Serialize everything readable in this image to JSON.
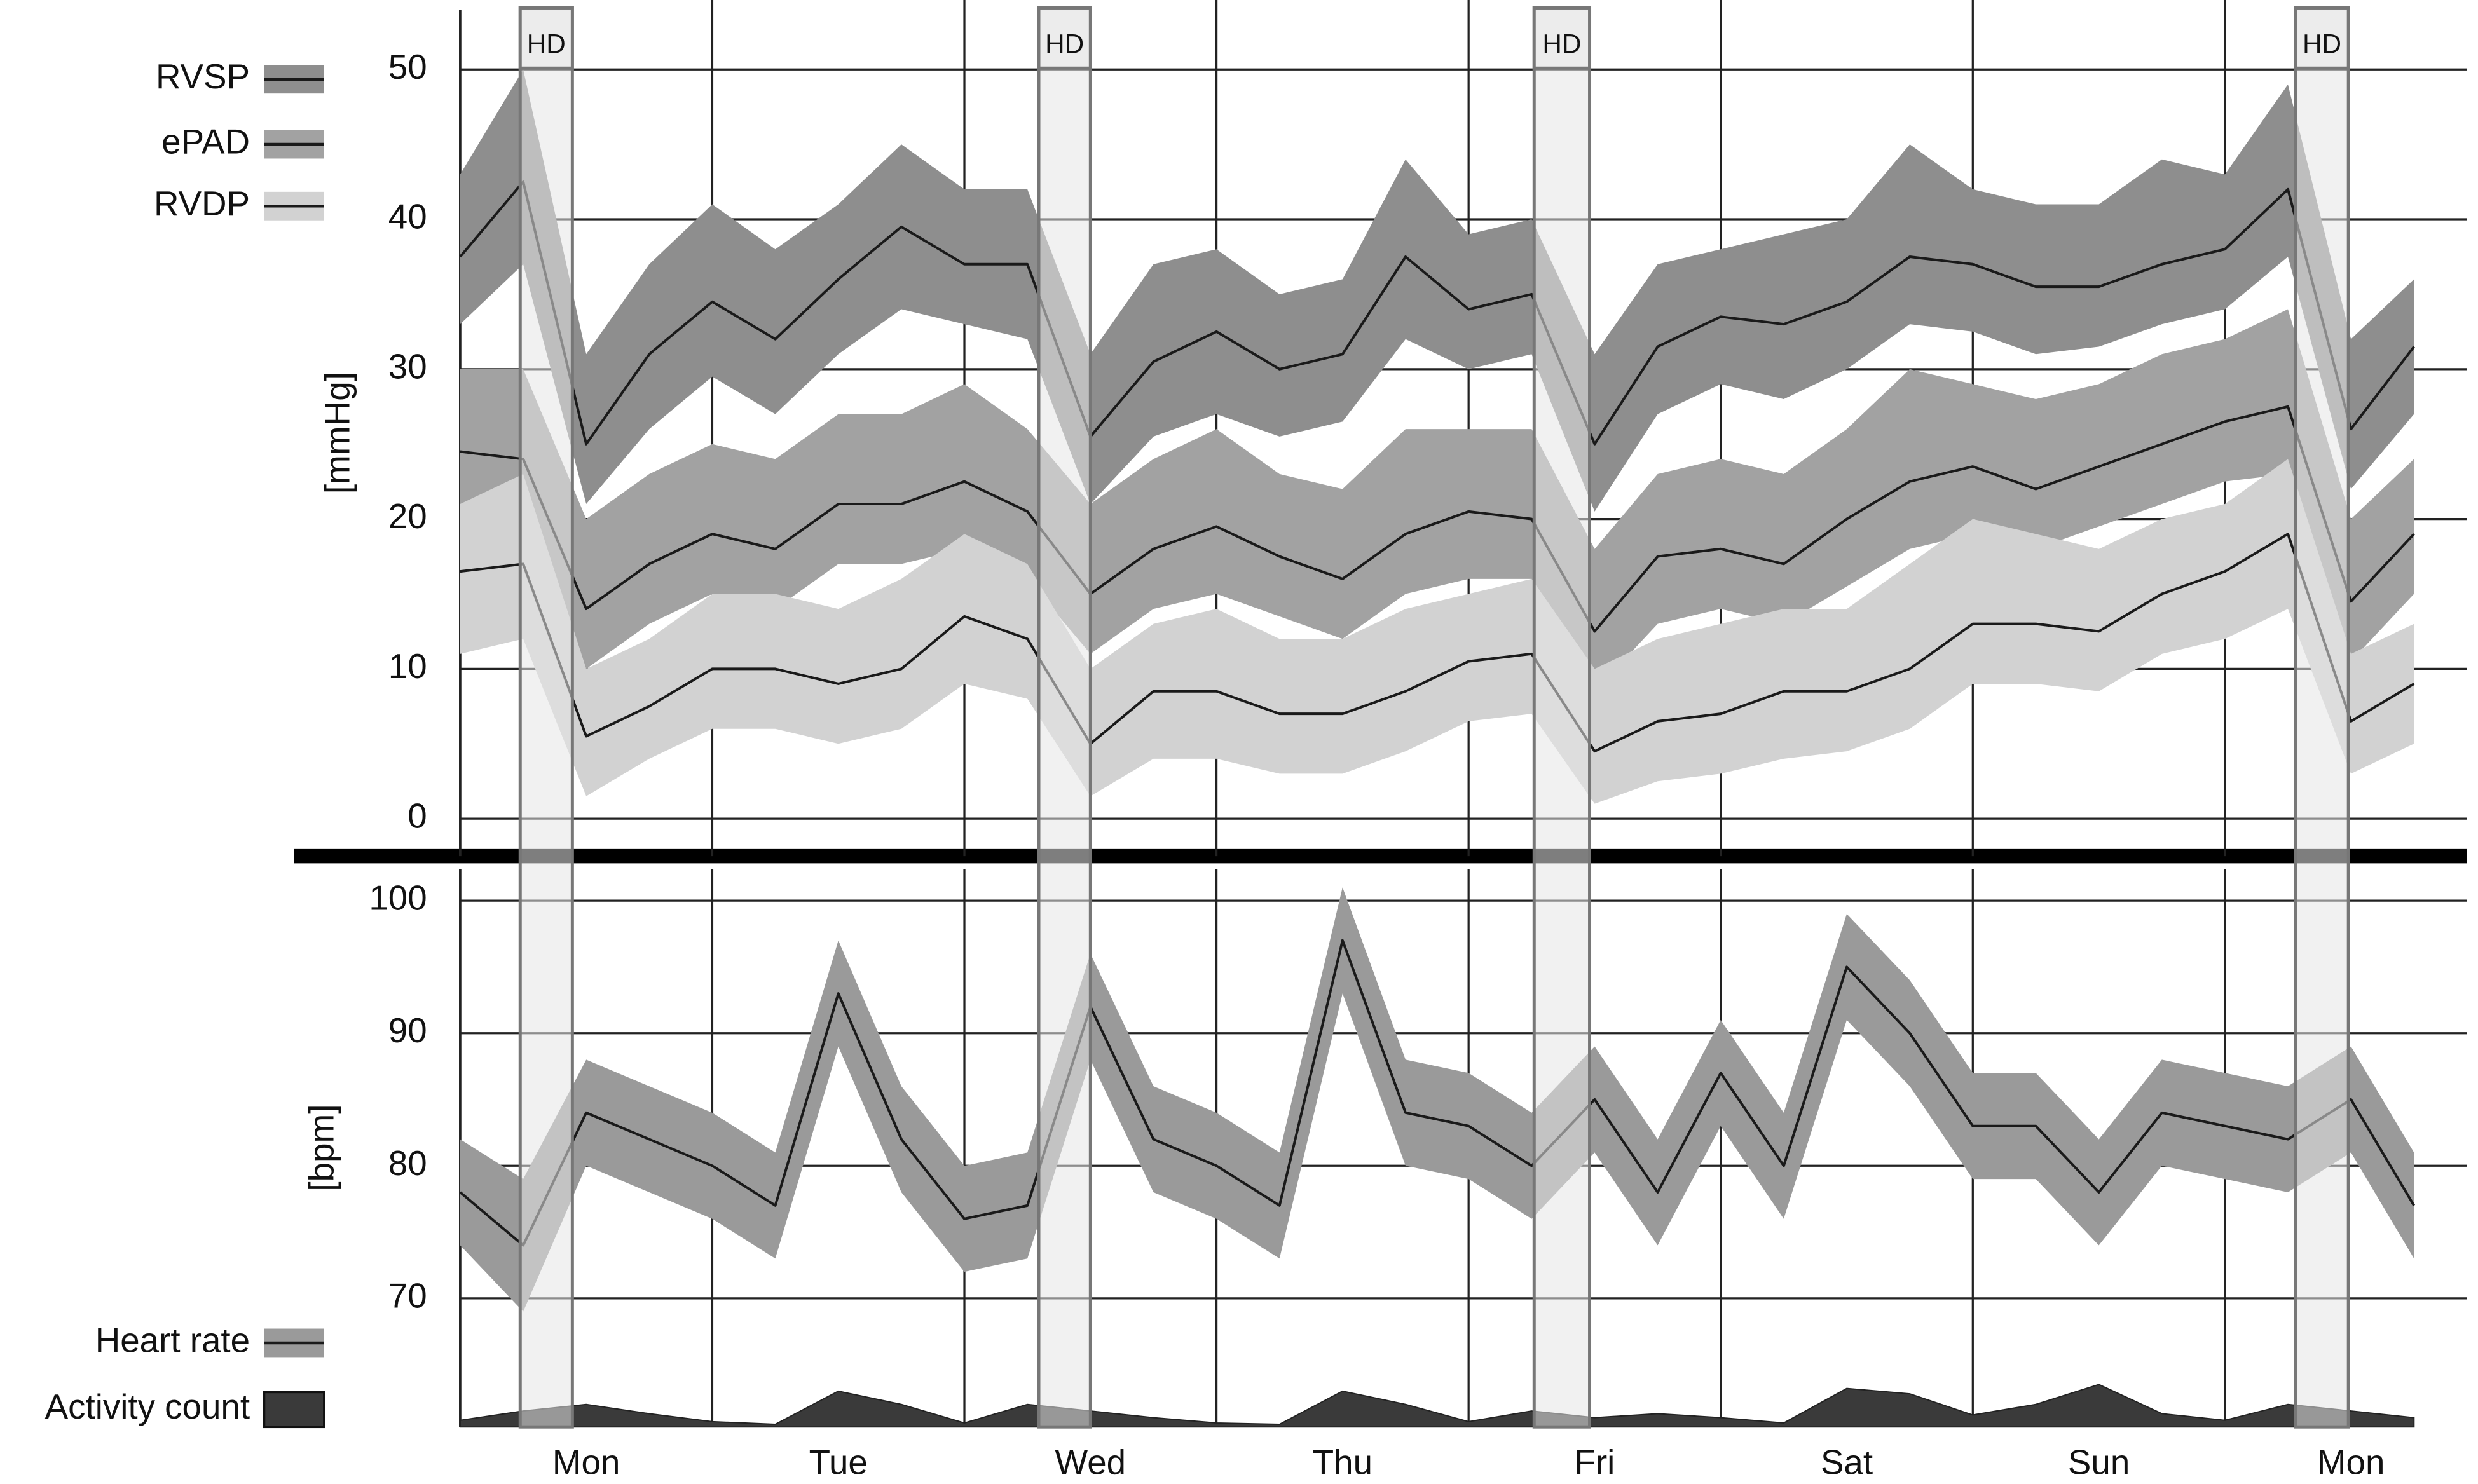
{
  "chart_data": [
    {
      "type": "line",
      "ylabel": "[mmHg]",
      "x": [
        0,
        0.25,
        0.5,
        0.75,
        1,
        1.25,
        1.5,
        1.75,
        2,
        2.25,
        2.5,
        2.75,
        3,
        3.25,
        3.5,
        3.75,
        4,
        4.25,
        4.5,
        4.75,
        5,
        5.25,
        5.5,
        5.75,
        6,
        6.25,
        6.5,
        6.75,
        7,
        7.25,
        7.5,
        7.75
      ],
      "xlim": [
        0,
        7.96
      ],
      "ylim": [
        -2.5,
        54
      ],
      "yticks": [
        0,
        10,
        20,
        30,
        40,
        50
      ],
      "grid": true,
      "legend": "upper left",
      "annotations": [
        {
          "label": "HD",
          "x": [
            0.238,
            0.445
          ]
        },
        {
          "label": "HD",
          "x": [
            2.295,
            2.5
          ]
        },
        {
          "label": "HD",
          "x": [
            4.26,
            4.48
          ]
        },
        {
          "label": "HD",
          "x": [
            7.28,
            7.49
          ]
        }
      ],
      "series": [
        {
          "name": "RVSP",
          "color": "#1a1a1a",
          "band_color": "#8e8e8e",
          "values": [
            37.5,
            42.5,
            25,
            31,
            34.5,
            32,
            36,
            39.5,
            37,
            37,
            25.5,
            30.5,
            32.5,
            30,
            31,
            37.5,
            34,
            35,
            25,
            31.5,
            33.5,
            33,
            34.5,
            37.5,
            37,
            35.5,
            35.5,
            37,
            38,
            42,
            26,
            31.5
          ],
          "lower": [
            33,
            37,
            21,
            26,
            29.5,
            27,
            31,
            34,
            33,
            32,
            21,
            25.5,
            27,
            25.5,
            26.5,
            32,
            30,
            31,
            20.5,
            27,
            29,
            28,
            30,
            33,
            32.5,
            31,
            31.5,
            33,
            34,
            37.5,
            22,
            27
          ],
          "upper": [
            43,
            50,
            31,
            37,
            41,
            38,
            41,
            45,
            42,
            42,
            31,
            37,
            38,
            35,
            36,
            44,
            39,
            40,
            31,
            37,
            38,
            39,
            40,
            45,
            42,
            41,
            41,
            44,
            43,
            49,
            32,
            36
          ]
        },
        {
          "name": "ePAD",
          "color": "#1a1a1a",
          "band_color": "#a2a2a2",
          "values": [
            24.5,
            24,
            14,
            17,
            19,
            18,
            21,
            21,
            22.5,
            20.5,
            15,
            18,
            19.5,
            17.5,
            16,
            19,
            20.5,
            20,
            12.5,
            17.5,
            18,
            17,
            20,
            22.5,
            23.5,
            22,
            23.5,
            25,
            26.5,
            27.5,
            14.5,
            19
          ],
          "lower": [
            20,
            20,
            10,
            13,
            15,
            14,
            17,
            17,
            18,
            16,
            11,
            14,
            15,
            13.5,
            12,
            15,
            16,
            16,
            8.5,
            13,
            14,
            13,
            15.5,
            18,
            19,
            18,
            19.5,
            21,
            22.5,
            23,
            10.5,
            15
          ],
          "upper": [
            30,
            30,
            20,
            23,
            25,
            24,
            27,
            27,
            29,
            26,
            21,
            24,
            26,
            23,
            22,
            26,
            26,
            26,
            18,
            23,
            24,
            23,
            26,
            30,
            29,
            28,
            29,
            31,
            32,
            34,
            20,
            24
          ]
        },
        {
          "name": "RVDP",
          "color": "#1a1a1a",
          "band_color": "#d2d2d2",
          "values": [
            16.5,
            17,
            5.5,
            7.5,
            10,
            10,
            9,
            10,
            13.5,
            12,
            5,
            8.5,
            8.5,
            7,
            7,
            8.5,
            10.5,
            11,
            4.5,
            6.5,
            7,
            8.5,
            8.5,
            10,
            13,
            13,
            12.5,
            15,
            16.5,
            19,
            6.5,
            9
          ],
          "lower": [
            11,
            12,
            1.5,
            4,
            6,
            6,
            5,
            6,
            9,
            8,
            1.5,
            4,
            4,
            3,
            3,
            4.5,
            6.5,
            7,
            1,
            2.5,
            3,
            4,
            4.5,
            6,
            9,
            9,
            8.5,
            11,
            12,
            14,
            3,
            5
          ],
          "upper": [
            21,
            23,
            10,
            12,
            15,
            15,
            14,
            16,
            19,
            17,
            10,
            13,
            14,
            12,
            12,
            14,
            15,
            16,
            10,
            12,
            13,
            14,
            14,
            17,
            20,
            19,
            18,
            20,
            21,
            24,
            11,
            13
          ]
        }
      ]
    },
    {
      "type": "line",
      "ylabel": "[bpm]",
      "x": [
        0,
        0.25,
        0.5,
        0.75,
        1,
        1.25,
        1.5,
        1.75,
        2,
        2.25,
        2.5,
        2.75,
        3,
        3.25,
        3.5,
        3.75,
        4,
        4.25,
        4.5,
        4.75,
        5,
        5.25,
        5.5,
        5.75,
        6,
        6.25,
        6.5,
        6.75,
        7,
        7.25,
        7.5,
        7.75
      ],
      "xlim": [
        0,
        7.96
      ],
      "ylim": [
        60.3,
        102.4
      ],
      "yticks": [
        70,
        80,
        90,
        100
      ],
      "grid": true,
      "legend": "lower left",
      "xticks": [
        {
          "value": 0.5,
          "label": "Mon"
        },
        {
          "value": 1.5,
          "label": "Tue"
        },
        {
          "value": 2.5,
          "label": "Wed"
        },
        {
          "value": 3.5,
          "label": "Thu"
        },
        {
          "value": 4.5,
          "label": "Fri"
        },
        {
          "value": 5.5,
          "label": "Sat"
        },
        {
          "value": 6.5,
          "label": "Sun"
        },
        {
          "value": 7.5,
          "label": "Mon"
        }
      ],
      "series": [
        {
          "name": "Heart rate",
          "color": "#1a1a1a",
          "band_color": "#9a9a9a",
          "values": [
            78,
            74,
            84,
            82,
            80,
            77,
            93,
            82,
            76,
            77,
            92,
            82,
            80,
            77,
            97,
            84,
            83,
            80,
            85,
            78,
            87,
            80,
            95,
            90,
            83,
            83,
            78,
            84,
            83,
            82,
            85,
            77
          ],
          "lower": [
            74,
            69,
            80,
            78,
            76,
            73,
            89,
            78,
            72,
            73,
            88,
            78,
            76,
            73,
            93,
            80,
            79,
            76,
            81,
            74,
            83,
            76,
            91,
            86,
            79,
            79,
            74,
            80,
            79,
            78,
            81,
            73
          ],
          "upper": [
            82,
            79,
            88,
            86,
            84,
            81,
            97,
            86,
            80,
            81,
            96,
            86,
            84,
            81,
            101,
            88,
            87,
            84,
            89,
            82,
            91,
            84,
            99,
            94,
            87,
            87,
            82,
            88,
            87,
            86,
            89,
            81
          ]
        },
        {
          "name": "Activity count",
          "type": "area",
          "color": "#3a3a3a",
          "values": [
            60.8,
            61.5,
            62,
            61.3,
            60.7,
            60.5,
            63,
            62,
            60.6,
            62,
            61.5,
            61,
            60.6,
            60.5,
            63,
            62,
            60.7,
            61.5,
            61,
            61.3,
            61,
            60.6,
            63.2,
            62.8,
            61.2,
            62,
            63.5,
            61.3,
            60.8,
            62,
            61.5,
            61
          ]
        }
      ]
    }
  ]
}
